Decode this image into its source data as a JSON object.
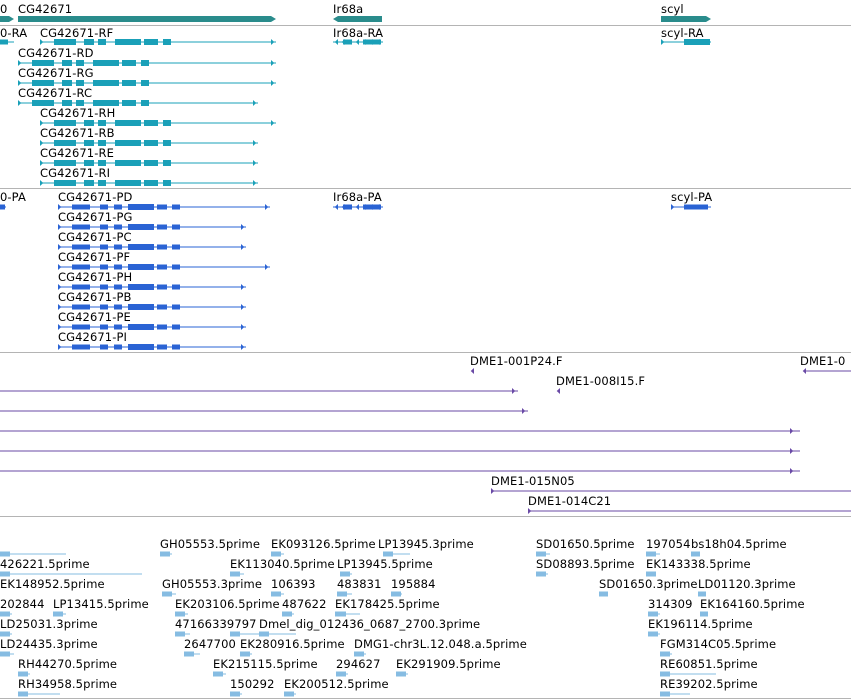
{
  "colors": {
    "gene": "#2a8c8c",
    "mrna": "#1aa0b8",
    "cds": "#2a63d4",
    "clone": "#6a4aa6",
    "est": "#86bce2",
    "divider": "#b4b4b4"
  },
  "tracks": {
    "genes": {
      "labels": [
        "0",
        "CG42671",
        "Ir68a",
        "scyl"
      ]
    },
    "transcripts": {
      "labels": [
        "0-RA",
        "CG42671-RF",
        "CG42671-RD",
        "CG42671-RG",
        "CG42671-RC",
        "CG42671-RH",
        "CG42671-RB",
        "CG42671-RE",
        "CG42671-RI",
        "Ir68a-RA",
        "scyl-RA"
      ]
    },
    "cds": {
      "labels": [
        "0-PA",
        "CG42671-PD",
        "CG42671-PG",
        "CG42671-PC",
        "CG42671-PF",
        "CG42671-PH",
        "CG42671-PB",
        "CG42671-PE",
        "CG42671-PI",
        "Ir68a-PA",
        "scyl-PA"
      ]
    },
    "clones": {
      "labels": [
        "DME1-001P24.F",
        "DME1-0",
        "DME1-008I15.F",
        "DME1-015N05",
        "DME1-014C21"
      ]
    },
    "ests": {
      "labels": [
        "GH05553.5prime",
        "EK093126.5prime",
        "LP13945.3prime",
        "SD01650.5prime",
        "197054",
        "bs18h04.5prime",
        "426221.5prime",
        "EK113040.5prime",
        "LP13945.5prime",
        "SD08893.5prime",
        "EK143338.5prime",
        "EK148952.5prime",
        "GH05553.3prime",
        "106393",
        "483831",
        "195884",
        "SD01650.3prime",
        "LD01120.3prime",
        "202844",
        "LP13415.5prime",
        "EK203106.5prime",
        "487622",
        "EK178425.5prime",
        "314309",
        "EK164160.5prime",
        "LD25031.3prime",
        "47166339797",
        "Dmel_dig_012436_0687_2700.3prime",
        "EK196114.5prime",
        "LD24435.3prime",
        "2647700",
        "EK280916.5prime",
        "DMG1-chr3L.12.048.a.5prime",
        "FGM314C05.5prime",
        "RH44270.5prime",
        "EK215115.5prime",
        "294627",
        "EK291909.5prime",
        "RE60851.5prime",
        "RH34958.5prime",
        "150292",
        "EK200512.5prime",
        "RE39202.5prime"
      ]
    }
  }
}
